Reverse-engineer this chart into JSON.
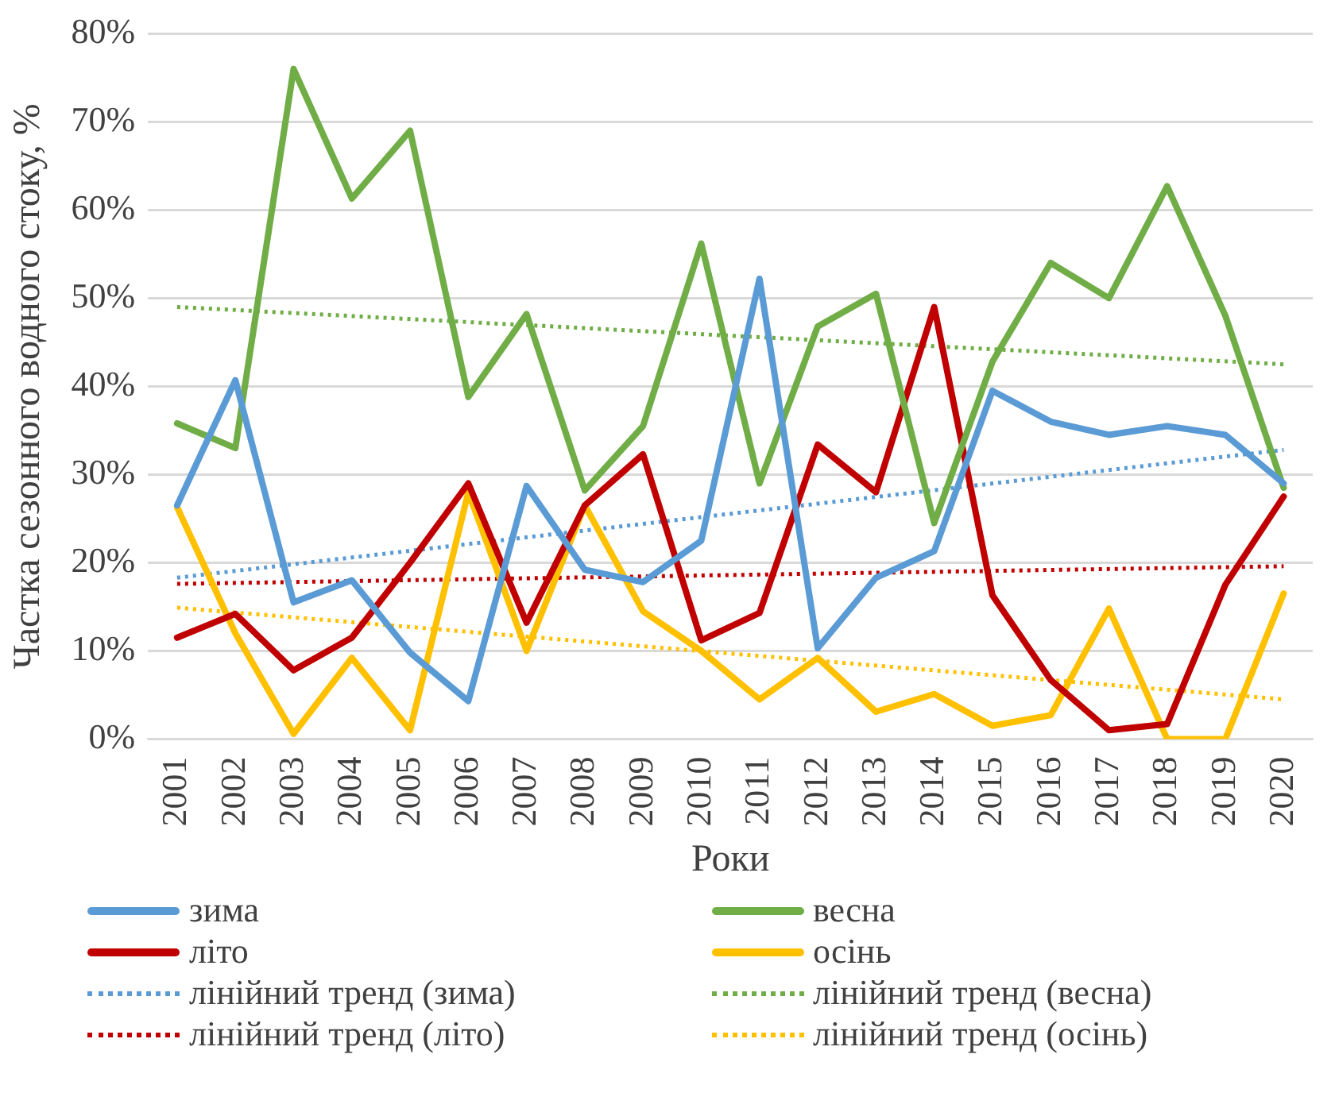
{
  "chart_data": {
    "type": "line",
    "xlabel": "Роки",
    "ylabel": "Частка сезонного водного стоку, %",
    "categories": [
      "2001",
      "2002",
      "2003",
      "2004",
      "2005",
      "2006",
      "2007",
      "2008",
      "2009",
      "2010",
      "2011",
      "2012",
      "2013",
      "2014",
      "2015",
      "2016",
      "2017",
      "2018",
      "2019",
      "2020"
    ],
    "series": [
      {
        "name": "зима",
        "color": "#5b9bd5",
        "values": [
          26.5,
          40.7,
          15.5,
          18,
          9.8,
          4.3,
          28.7,
          19.2,
          17.8,
          22.5,
          52.2,
          10.3,
          18.3,
          21.3,
          39.5,
          36,
          34.5,
          35.5,
          34.5,
          29
        ]
      },
      {
        "name": "весна",
        "color": "#70ad47",
        "values": [
          35.8,
          33,
          76,
          61.3,
          69,
          38.8,
          48.2,
          28.2,
          35.5,
          56.2,
          29,
          46.8,
          50.5,
          24.5,
          42.8,
          54,
          50,
          62.7,
          48,
          28.5
        ]
      },
      {
        "name": "літо",
        "color": "#c00000",
        "values": [
          11.5,
          14.2,
          7.8,
          11.5,
          20,
          29,
          13.2,
          26.5,
          32.3,
          11.2,
          14.3,
          33.4,
          28,
          49,
          16.3,
          6.7,
          1,
          1.7,
          17.5,
          27.5
        ]
      },
      {
        "name": "осінь",
        "color": "#ffc000",
        "values": [
          26.3,
          12,
          0.6,
          9.2,
          1,
          28,
          10,
          26.5,
          14.5,
          10,
          4.5,
          9.2,
          3.1,
          5.1,
          1.5,
          2.7,
          14.8,
          0,
          0,
          16.5
        ]
      },
      {
        "name": "лінійний тренд (зима)",
        "color": "#5b9bd5",
        "line_style": "dotted",
        "values": [
          18.3,
          null,
          null,
          null,
          null,
          null,
          null,
          null,
          null,
          null,
          null,
          null,
          null,
          null,
          null,
          null,
          null,
          null,
          null,
          32.8
        ]
      },
      {
        "name": "лінійний тренд (весна)",
        "color": "#70ad47",
        "line_style": "dotted",
        "values": [
          49,
          null,
          null,
          null,
          null,
          null,
          null,
          null,
          null,
          null,
          null,
          null,
          null,
          null,
          null,
          null,
          null,
          null,
          null,
          42.5
        ]
      },
      {
        "name": "лінійний тренд (літо)",
        "color": "#c00000",
        "line_style": "dotted",
        "values": [
          17.6,
          null,
          null,
          null,
          null,
          null,
          null,
          null,
          null,
          null,
          null,
          null,
          null,
          null,
          null,
          null,
          null,
          null,
          null,
          19.6
        ]
      },
      {
        "name": "лінійний тренд (осінь)",
        "color": "#ffc000",
        "line_style": "dotted",
        "values": [
          14.9,
          null,
          null,
          null,
          null,
          null,
          null,
          null,
          null,
          null,
          null,
          null,
          null,
          null,
          null,
          null,
          null,
          null,
          null,
          4.5
        ]
      }
    ],
    "ylim": [
      0,
      80
    ],
    "yticks": [
      {
        "value": 0,
        "label": "0%"
      },
      {
        "value": 10,
        "label": "10%"
      },
      {
        "value": 20,
        "label": "20%"
      },
      {
        "value": 30,
        "label": "30%"
      },
      {
        "value": 40,
        "label": "40%"
      },
      {
        "value": 50,
        "label": "50%"
      },
      {
        "value": 60,
        "label": "60%"
      },
      {
        "value": 70,
        "label": "70%"
      },
      {
        "value": 80,
        "label": "80%"
      }
    ],
    "grid": "y",
    "legend": "bottom",
    "marker": "none",
    "line_style": "solid"
  }
}
